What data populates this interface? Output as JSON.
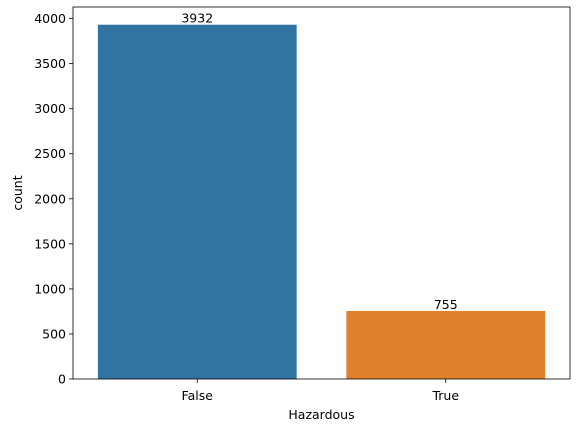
{
  "chart_data": {
    "type": "bar",
    "categories": [
      "False",
      "True"
    ],
    "values": [
      3932,
      755
    ],
    "data_labels": [
      "3932",
      "755"
    ],
    "colors": [
      "#3274a1",
      "#e1812c"
    ],
    "title": "",
    "xlabel": "Hazardous",
    "ylabel": "count",
    "ylim": [
      0,
      4128.6
    ],
    "yticks": [
      0,
      500,
      1000,
      1500,
      2000,
      2500,
      3000,
      3500,
      4000
    ],
    "grid": false,
    "legend": "none"
  }
}
